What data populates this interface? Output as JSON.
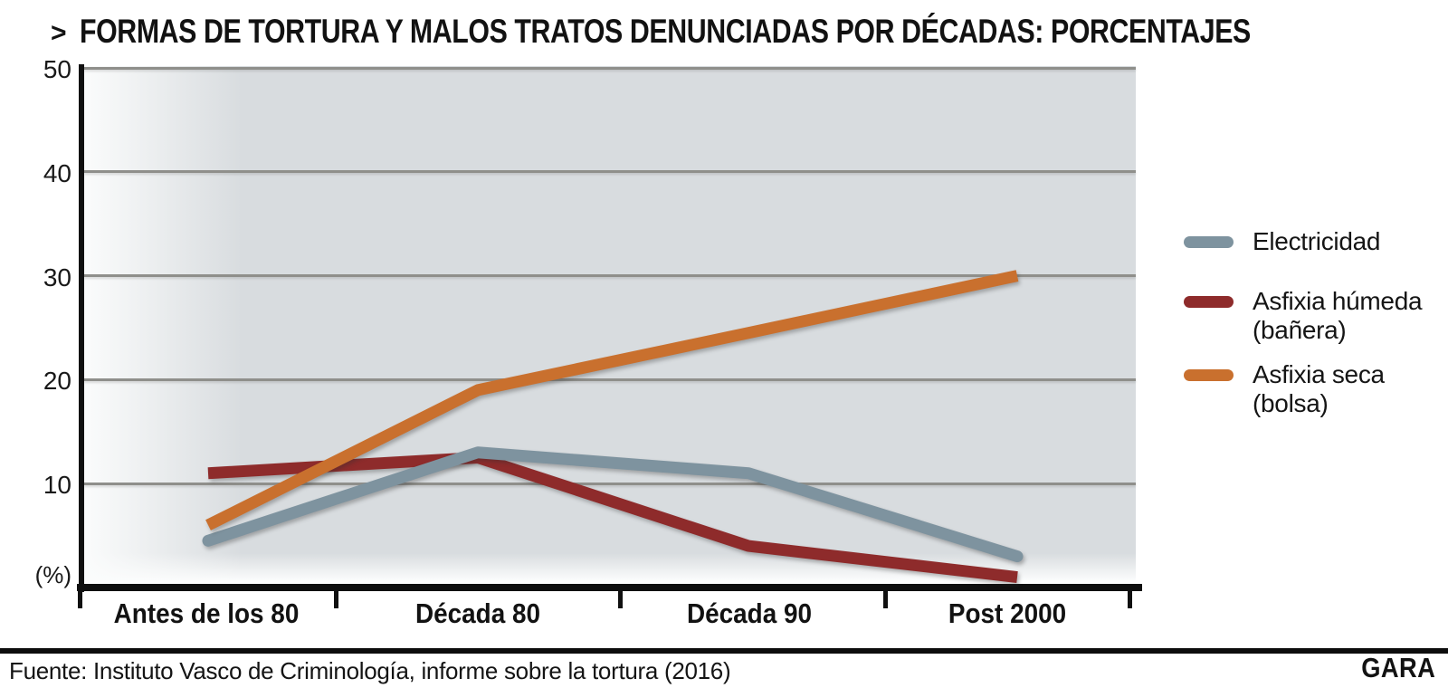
{
  "header": {
    "chevron": ">",
    "title": "FORMAS DE TORTURA Y MALOS TRATOS DENUNCIADAS POR DÉCADAS: PORCENTAJES"
  },
  "chart_data": {
    "type": "line",
    "title": "Formas de tortura y malos tratos denunciadas por décadas: porcentajes",
    "categories": [
      "Antes de los 80",
      "Década 80",
      "Década 90",
      "Post 2000"
    ],
    "series": [
      {
        "name": "Electricidad",
        "legend_lines": [
          "Electricidad"
        ],
        "values": [
          4.5,
          13,
          11,
          3
        ],
        "color": "#7e939f",
        "linecap": "round"
      },
      {
        "name": "Asfixia húmeda (bañera)",
        "legend_lines": [
          "Asfixia húmeda",
          "(bañera)"
        ],
        "values": [
          11,
          12.5,
          4,
          1
        ],
        "color": "#8e2b2b",
        "linecap": "butt"
      },
      {
        "name": "Asfixia seca (bolsa)",
        "legend_lines": [
          "Asfixia seca",
          "(bolsa)"
        ],
        "values": [
          6,
          19,
          24.5,
          30
        ],
        "color": "#c9702e",
        "linecap": "butt"
      }
    ],
    "xlabel": "",
    "ylabel": "(%)",
    "unit_label": "(%)",
    "y_ticks": [
      10,
      20,
      30,
      40,
      50
    ],
    "ylim": [
      0,
      50
    ],
    "grid": "horizontal",
    "legend_position": "right",
    "colors": {
      "plot_background": "#d8dcdf",
      "gridline": "#8f8f8b",
      "axis": "#101010",
      "text": "#121212"
    }
  },
  "footer": {
    "source": "Fuente: Instituto Vasco de Criminología, informe sobre la tortura (2016)",
    "brand": "GARA"
  }
}
